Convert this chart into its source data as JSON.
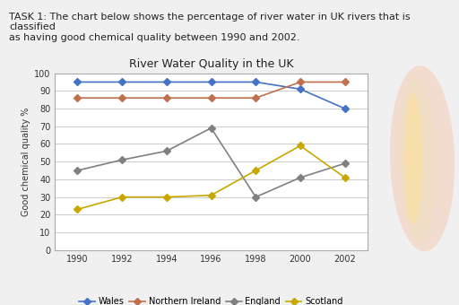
{
  "header_text": "TASK 1: The chart below shows the percentage of river water in UK rivers that is classified\nas having good chemical quality between 1990 and 2002.",
  "title": "River Water Quality in the UK",
  "ylabel": "Good chemical quality %",
  "years": [
    1990,
    1992,
    1994,
    1996,
    1998,
    2000,
    2002
  ],
  "series": {
    "Wales": {
      "values": [
        95,
        95,
        95,
        95,
        95,
        91,
        80
      ],
      "color": "#4472C4",
      "marker": "D",
      "markersize": 4
    },
    "Northern Ireland": {
      "values": [
        86,
        86,
        86,
        86,
        86,
        95,
        95
      ],
      "color": "#C0704D",
      "marker": "D",
      "markersize": 4
    },
    "England": {
      "values": [
        45,
        51,
        56,
        69,
        30,
        41,
        49
      ],
      "color": "#808080",
      "marker": "D",
      "markersize": 4
    },
    "Scotland": {
      "values": [
        23,
        30,
        30,
        31,
        45,
        59,
        41
      ],
      "color": "#C8A800",
      "marker": "D",
      "markersize": 4
    }
  },
  "ylim": [
    0,
    100
  ],
  "yticks": [
    0,
    10,
    20,
    30,
    40,
    50,
    60,
    70,
    80,
    90,
    100
  ],
  "xticks": [
    1990,
    1992,
    1994,
    1996,
    1998,
    2000,
    2002
  ],
  "grid_color": "#cccccc",
  "background_color": "#f0f0f0",
  "chart_bg": "#ffffff",
  "title_fontsize": 9,
  "label_fontsize": 7,
  "tick_fontsize": 7,
  "legend_fontsize": 7,
  "header_fontsize": 8
}
